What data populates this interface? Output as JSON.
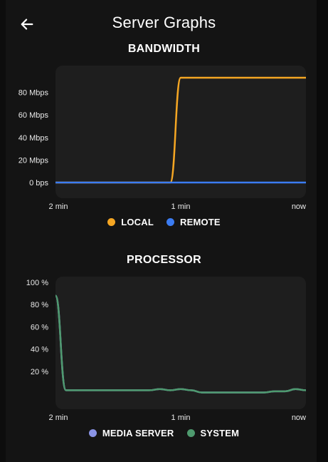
{
  "header": {
    "title": "Server Graphs"
  },
  "bandwidth": {
    "title": "BANDWIDTH",
    "chart_data": {
      "type": "line",
      "x_tick_labels": [
        "2 min",
        "1 min",
        "now"
      ],
      "y_tick_labels": [
        "0 bps",
        "20 Mbps",
        "40 Mbps",
        "60 Mbps",
        "80 Mbps"
      ],
      "ylim": [
        0,
        100
      ],
      "x": [
        0,
        1,
        2,
        3,
        4,
        5,
        6,
        7,
        8,
        9,
        10,
        11,
        12,
        13,
        14,
        15,
        16,
        17,
        18,
        19,
        20,
        21,
        22,
        23,
        24
      ],
      "series": [
        {
          "name": "LOCAL",
          "color": "#f5a623",
          "values": [
            0,
            0,
            0,
            0,
            0,
            0,
            0,
            0,
            0,
            0,
            0,
            0,
            93,
            93,
            93,
            93,
            93,
            93,
            93,
            93,
            93,
            93,
            93,
            93,
            93
          ]
        },
        {
          "name": "REMOTE",
          "color": "#3b7cf2",
          "values": [
            0,
            0,
            0,
            0,
            0,
            0,
            0,
            0,
            0,
            0,
            0,
            0,
            0,
            0,
            0,
            0,
            0,
            0,
            0,
            0,
            0,
            0,
            0,
            0,
            0
          ]
        }
      ],
      "grid": false,
      "legend": "bottom"
    },
    "legend": [
      {
        "label": "LOCAL",
        "color": "#f5a623"
      },
      {
        "label": "REMOTE",
        "color": "#3b7cf2"
      }
    ]
  },
  "processor": {
    "title": "PROCESSOR",
    "chart_data": {
      "type": "line",
      "x_tick_labels": [
        "2 min",
        "1 min",
        "now"
      ],
      "y_tick_labels": [
        "20 %",
        "40 %",
        "60 %",
        "80 %",
        "100 %"
      ],
      "ylim": [
        0,
        100
      ],
      "x": [
        0,
        1,
        2,
        3,
        4,
        5,
        6,
        7,
        8,
        9,
        10,
        11,
        12,
        13,
        14,
        15,
        16,
        17,
        18,
        19,
        20,
        21,
        22,
        23,
        24
      ],
      "series": [
        {
          "name": "MEDIA SERVER",
          "color": "#8a94e6",
          "values": [
            88,
            3,
            3,
            3,
            3,
            3,
            3,
            3,
            3,
            3,
            4,
            3,
            4,
            3,
            1,
            1,
            1,
            1,
            1,
            1,
            1,
            2,
            2,
            4,
            3
          ]
        },
        {
          "name": "SYSTEM",
          "color": "#4e9a6e",
          "values": [
            88,
            3,
            3,
            3,
            3,
            3,
            3,
            3,
            3,
            3,
            4,
            3,
            4,
            3,
            1,
            1,
            1,
            1,
            1,
            1,
            1,
            2,
            2,
            4,
            3
          ]
        }
      ],
      "grid": false,
      "legend": "bottom"
    },
    "legend": [
      {
        "label": "MEDIA SERVER",
        "color": "#8a94e6"
      },
      {
        "label": "SYSTEM",
        "color": "#4e9a6e"
      }
    ]
  }
}
